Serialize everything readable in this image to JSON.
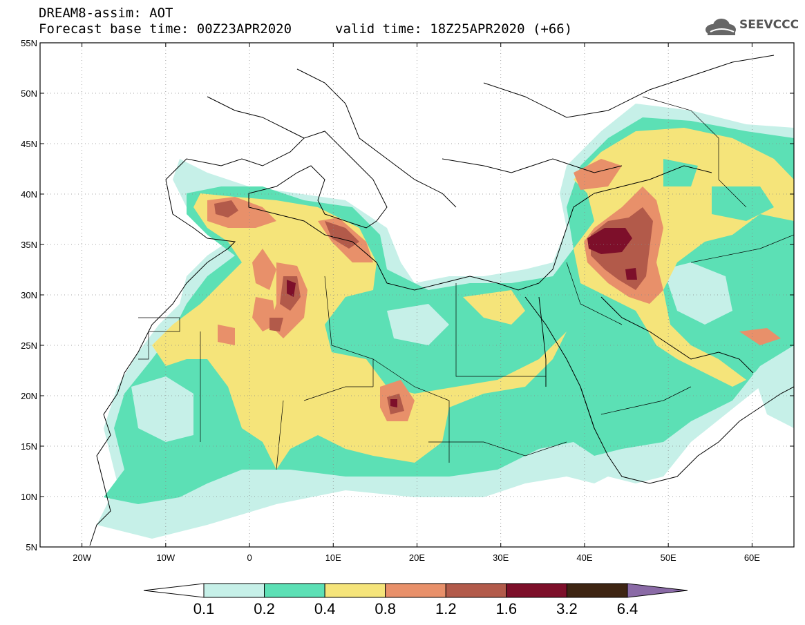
{
  "header": {
    "title": "DREAM8-assim: AOT",
    "base_time": "Forecast base time: 00Z23APR2020",
    "valid_time": "valid time: 18Z25APR2020 (+66)"
  },
  "logo": {
    "text": "SEEVCCC",
    "icon": "cloud-icon"
  },
  "map": {
    "lat_labels": [
      "55N",
      "50N",
      "45N",
      "40N",
      "35N",
      "30N",
      "25N",
      "20N",
      "15N",
      "10N",
      "5N"
    ],
    "lat_values": [
      55,
      50,
      45,
      40,
      35,
      30,
      25,
      20,
      15,
      10,
      5
    ],
    "lon_labels": [
      "20W",
      "10W",
      "0",
      "10E",
      "20E",
      "30E",
      "40E",
      "50E",
      "60E"
    ],
    "lon_values": [
      -20,
      -10,
      0,
      10,
      20,
      30,
      40,
      50,
      60
    ],
    "lon_range": [
      -25,
      65
    ],
    "lat_range": [
      5,
      55
    ],
    "grid": "dotted"
  },
  "colorbar": {
    "labels": [
      "0.1",
      "0.2",
      "0.4",
      "0.8",
      "1.2",
      "1.6",
      "3.2",
      "6.4"
    ],
    "colors": [
      "#c6f0e8",
      "#5ce0b5",
      "#f5e47a",
      "#e8906a",
      "#b25a4a",
      "#7d0f2a",
      "#3e2513",
      "#8a6aa6"
    ]
  }
}
